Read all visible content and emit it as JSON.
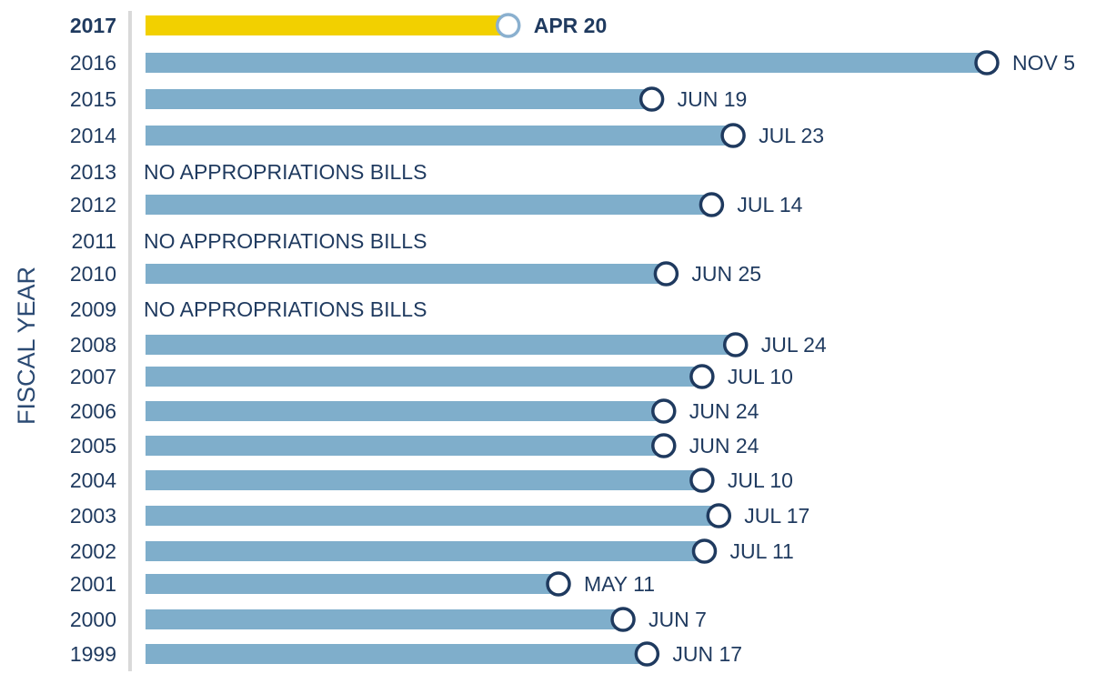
{
  "colors": {
    "bar": "#7faecb",
    "highlight_bar": "#f2d000",
    "marker_stroke": "#1f3a5f",
    "highlight_marker_stroke": "#8ab0cf",
    "text": "#1f3a5f",
    "axis_line": "#d9d9d9"
  },
  "chart_data": {
    "type": "bar",
    "orientation": "horizontal",
    "title": "",
    "ylabel": "FISCAL YEAR",
    "xlabel": "",
    "highlight_category": "2017",
    "rows": [
      {
        "year": "2017",
        "date": "APR 20",
        "day_of_year": 110
      },
      {
        "year": "2016",
        "date": "NOV 5",
        "day_of_year": 310
      },
      {
        "year": "2015",
        "date": "JUN 19",
        "day_of_year": 170
      },
      {
        "year": "2014",
        "date": "JUL 23",
        "day_of_year": 204
      },
      {
        "year": "2013",
        "date": null,
        "note": "NO APPROPRIATIONS BILLS"
      },
      {
        "year": "2012",
        "date": "JUL 14",
        "day_of_year": 195
      },
      {
        "year": "2011",
        "date": null,
        "note": "NO APPROPRIATIONS BILLS"
      },
      {
        "year": "2010",
        "date": "JUN 25",
        "day_of_year": 176
      },
      {
        "year": "2009",
        "date": null,
        "note": "NO APPROPRIATIONS BILLS"
      },
      {
        "year": "2008",
        "date": "JUL 24",
        "day_of_year": 205
      },
      {
        "year": "2007",
        "date": "JUL 10",
        "day_of_year": 191
      },
      {
        "year": "2006",
        "date": "JUN 24",
        "day_of_year": 175
      },
      {
        "year": "2005",
        "date": "JUN 24",
        "day_of_year": 175
      },
      {
        "year": "2004",
        "date": "JUL 10",
        "day_of_year": 191
      },
      {
        "year": "2003",
        "date": "JUL 17",
        "day_of_year": 198
      },
      {
        "year": "2002",
        "date": "JUL 11",
        "day_of_year": 192
      },
      {
        "year": "2001",
        "date": "MAY 11",
        "day_of_year": 131
      },
      {
        "year": "2000",
        "date": "JUN 7",
        "day_of_year": 158
      },
      {
        "year": "1999",
        "date": "JUN 17",
        "day_of_year": 168
      }
    ]
  }
}
